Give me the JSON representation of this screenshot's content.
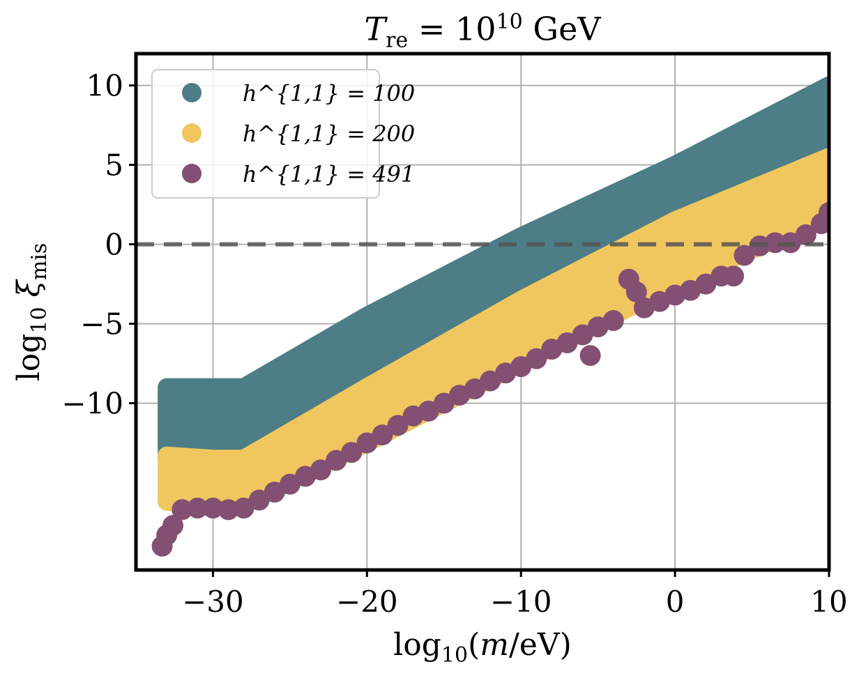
{
  "chart_data": {
    "type": "scatter",
    "title": "T_re = 10^10 GeV",
    "xlabel": "log10(m/eV)",
    "ylabel": "log10 ξ_mis",
    "xlim": [
      -35,
      10
    ],
    "ylim": [
      -20.5,
      12
    ],
    "xticks": [
      -30,
      -20,
      -10,
      0,
      10
    ],
    "xtick_labels": [
      "−30",
      "−20",
      "−10",
      "0",
      "10"
    ],
    "yticks": [
      10,
      5,
      0,
      -5,
      -10
    ],
    "ytick_labels": [
      "10",
      "5",
      "0",
      "−5",
      "−10"
    ],
    "grid": true,
    "legend_position": "top-left",
    "reference_line": {
      "y": 0,
      "style": "dashed",
      "color": "#555555"
    },
    "series": [
      {
        "name": "h^{1,1} = 100",
        "color": "#4d7d87",
        "upper": [
          [
            -33,
            -9
          ],
          [
            -30,
            -9
          ],
          [
            -28,
            -9
          ],
          [
            -20,
            -4.5
          ],
          [
            -10,
            0.5
          ],
          [
            0,
            5
          ],
          [
            10,
            10
          ]
        ],
        "lower": [
          [
            -33,
            -13.5
          ],
          [
            -30,
            -14
          ],
          [
            -28,
            -14
          ],
          [
            -20,
            -10.5
          ],
          [
            -10,
            -5
          ],
          [
            0,
            -0.5
          ],
          [
            10,
            4.5
          ]
        ]
      },
      {
        "name": "h^{1,1} = 200",
        "color": "#f0c75e",
        "upper": [
          [
            -33,
            -13.3
          ],
          [
            -30,
            -13.5
          ],
          [
            -28,
            -13.5
          ],
          [
            -20,
            -9
          ],
          [
            -10,
            -3.5
          ],
          [
            0,
            1.5
          ],
          [
            10,
            5.5
          ]
        ],
        "lower": [
          [
            -33,
            -16.2
          ],
          [
            -30,
            -16.5
          ],
          [
            -28,
            -16.4
          ],
          [
            -20,
            -12.5
          ],
          [
            -10,
            -7.5
          ],
          [
            0,
            -2.5
          ],
          [
            10,
            1.8
          ]
        ]
      },
      {
        "name": "h^{1,1} = 491",
        "color": "#834f72",
        "points": [
          [
            -33.3,
            -19
          ],
          [
            -33,
            -18.3
          ],
          [
            -32.6,
            -17.7
          ],
          [
            -32,
            -16.7
          ],
          [
            -31,
            -16.6
          ],
          [
            -30,
            -16.6
          ],
          [
            -29,
            -16.7
          ],
          [
            -28,
            -16.6
          ],
          [
            -27,
            -16.1
          ],
          [
            -26,
            -15.6
          ],
          [
            -25,
            -15.1
          ],
          [
            -24,
            -14.6
          ],
          [
            -23,
            -14.2
          ],
          [
            -22,
            -13.6
          ],
          [
            -21,
            -13.1
          ],
          [
            -20,
            -12.5
          ],
          [
            -19,
            -12
          ],
          [
            -18,
            -11.4
          ],
          [
            -17,
            -10.8
          ],
          [
            -16,
            -10.5
          ],
          [
            -15,
            -10
          ],
          [
            -14,
            -9.5
          ],
          [
            -13,
            -9.1
          ],
          [
            -12,
            -8.6
          ],
          [
            -11,
            -8.1
          ],
          [
            -10,
            -7.7
          ],
          [
            -9,
            -7.2
          ],
          [
            -8,
            -6.6
          ],
          [
            -7,
            -6.2
          ],
          [
            -6,
            -5.7
          ],
          [
            -5.5,
            -7
          ],
          [
            -5,
            -5.2
          ],
          [
            -4,
            -4.8
          ],
          [
            -3,
            -2.2
          ],
          [
            -2.5,
            -3
          ],
          [
            -2,
            -4
          ],
          [
            -1,
            -3.6
          ],
          [
            0,
            -3.2
          ],
          [
            1,
            -2.9
          ],
          [
            2,
            -2.5
          ],
          [
            3,
            -2
          ],
          [
            3.8,
            -2
          ],
          [
            4.5,
            -0.7
          ],
          [
            5.5,
            -0.1
          ],
          [
            6.5,
            0.1
          ],
          [
            7.5,
            0.1
          ],
          [
            8.5,
            0.6
          ],
          [
            9.5,
            1.3
          ],
          [
            10,
            2
          ]
        ]
      }
    ]
  },
  "legend": {
    "items": [
      {
        "label": "h^{1,1} = 100",
        "color": "#4d7d87"
      },
      {
        "label": "h^{1,1} = 200",
        "color": "#f0c75e"
      },
      {
        "label": "h^{1,1} = 491",
        "color": "#834f72"
      }
    ]
  }
}
